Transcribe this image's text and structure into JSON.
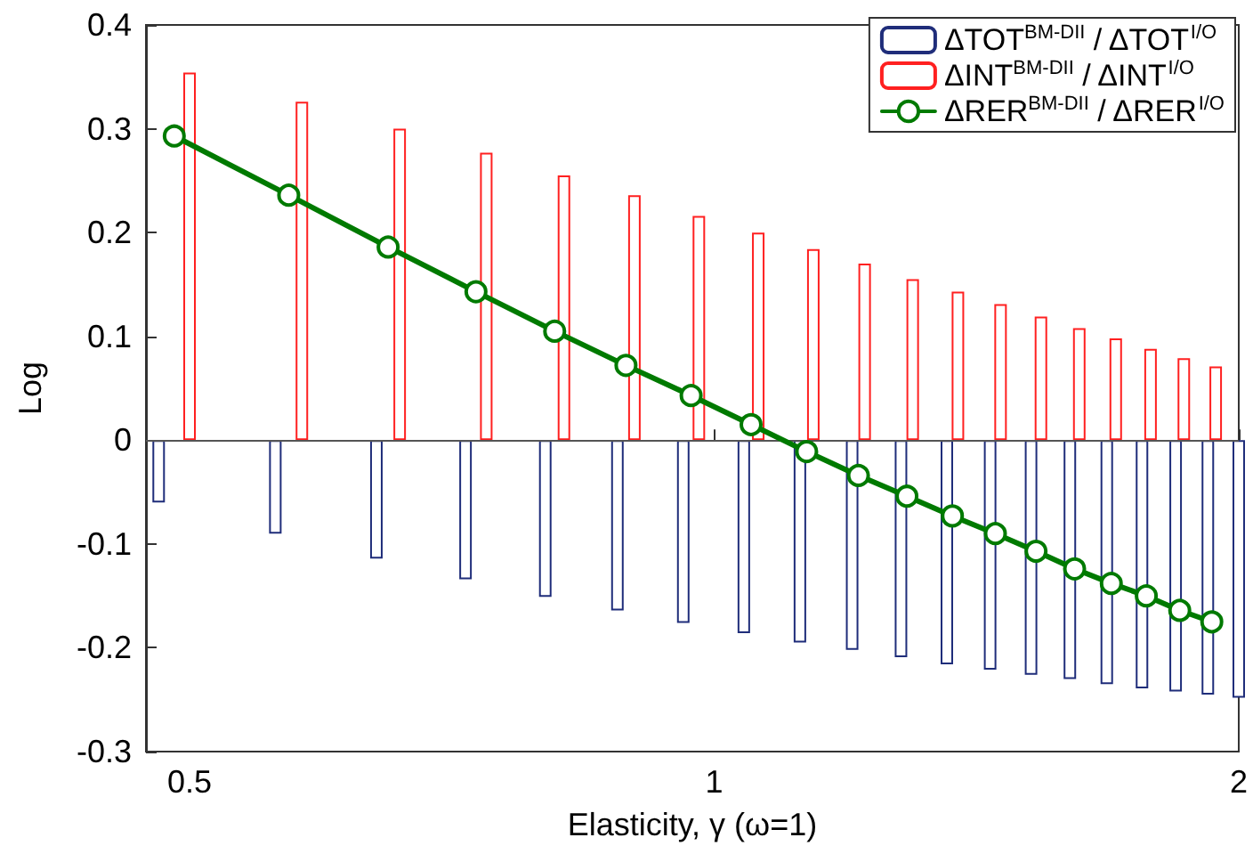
{
  "chart_data": {
    "type": "bar",
    "xlabel": "Elasticity, γ (ω=1)",
    "ylabel": "Log",
    "xlim": [
      0.472,
      2
    ],
    "xticks": [
      0.5,
      1,
      2
    ],
    "log": "x",
    "ylim": [
      -0.3,
      0.4
    ],
    "yticks": [
      -0.3,
      -0.2,
      -0.1,
      0,
      0.1,
      0.2,
      0.3,
      0.4
    ],
    "grid": false,
    "legend": "top right",
    "ref_lines": [
      {
        "axis": "y",
        "value": 0,
        "color": "#555555"
      }
    ],
    "series": [
      {
        "name": "ΔTOT$^{BM-DII}$ / ΔTOT$^{I/O}$",
        "color": "#1f2d7a",
        "x": [
          0.48,
          0.56,
          0.64,
          0.72,
          0.8,
          0.88,
          0.96,
          1.04,
          1.12,
          1.2,
          1.28,
          1.36,
          1.44,
          1.52,
          1.6,
          1.68,
          1.76,
          1.84,
          1.92,
          2.0
        ],
        "values": [
          -0.06,
          -0.09,
          -0.114,
          -0.134,
          -0.151,
          -0.164,
          -0.176,
          -0.186,
          -0.195,
          -0.202,
          -0.209,
          -0.216,
          -0.221,
          -0.226,
          -0.23,
          -0.235,
          -0.239,
          -0.242,
          -0.245,
          -0.248
        ]
      },
      {
        "name": "ΔINT$^{BM-DII}$ / ΔINT$^{I/O}$",
        "color": "#ff2020",
        "x": [
          0.5,
          0.58,
          0.66,
          0.74,
          0.82,
          0.9,
          0.98,
          1.06,
          1.14,
          1.22,
          1.3,
          1.38,
          1.46,
          1.54,
          1.62,
          1.7,
          1.78,
          1.86,
          1.94
        ],
        "values": [
          0.354,
          0.326,
          0.3,
          0.277,
          0.255,
          0.236,
          0.216,
          0.2,
          0.184,
          0.17,
          0.155,
          0.143,
          0.131,
          0.119,
          0.108,
          0.098,
          0.088,
          0.079,
          0.071
        ]
      },
      {
        "name": "ΔRER$^{BM-DII}$ / ΔRER$^{I/O}$",
        "type": "line",
        "marker": "circle",
        "color": "#007a00",
        "x": [
          0.49,
          0.57,
          0.65,
          0.73,
          0.81,
          0.89,
          0.97,
          1.05,
          1.13,
          1.21,
          1.29,
          1.37,
          1.45,
          1.53,
          1.61,
          1.69,
          1.77,
          1.85,
          1.93
        ],
        "values": [
          0.293,
          0.236,
          0.186,
          0.143,
          0.105,
          0.072,
          0.043,
          0.015,
          -0.011,
          -0.034,
          -0.054,
          -0.073,
          -0.09,
          -0.107,
          -0.124,
          -0.138,
          -0.15,
          -0.164,
          -0.175
        ]
      }
    ]
  }
}
